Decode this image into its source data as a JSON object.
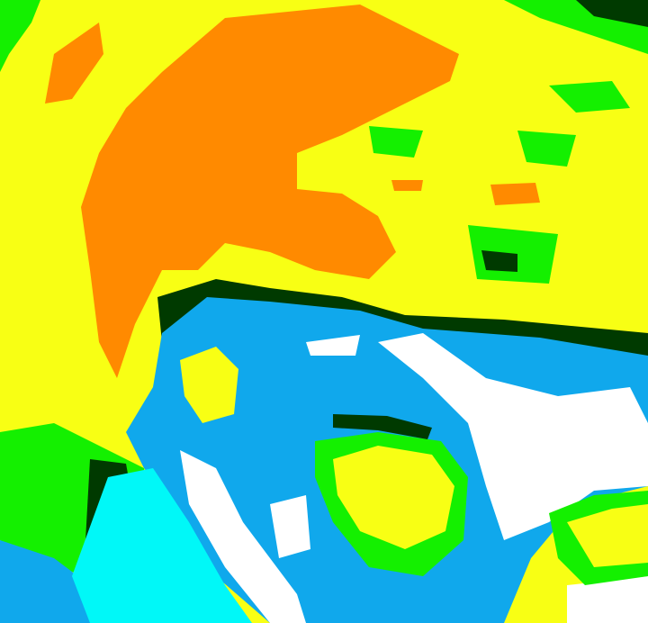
{
  "map": {
    "kind": "classified false-color raster",
    "palette": {
      "yellow": "#f8ff14",
      "orange": "#ff8a00",
      "green": "#14f000",
      "dark_green": "#003a00",
      "blue": "#10a8ec",
      "cyan": "#00f8f8",
      "white": "#ffffff"
    }
  }
}
